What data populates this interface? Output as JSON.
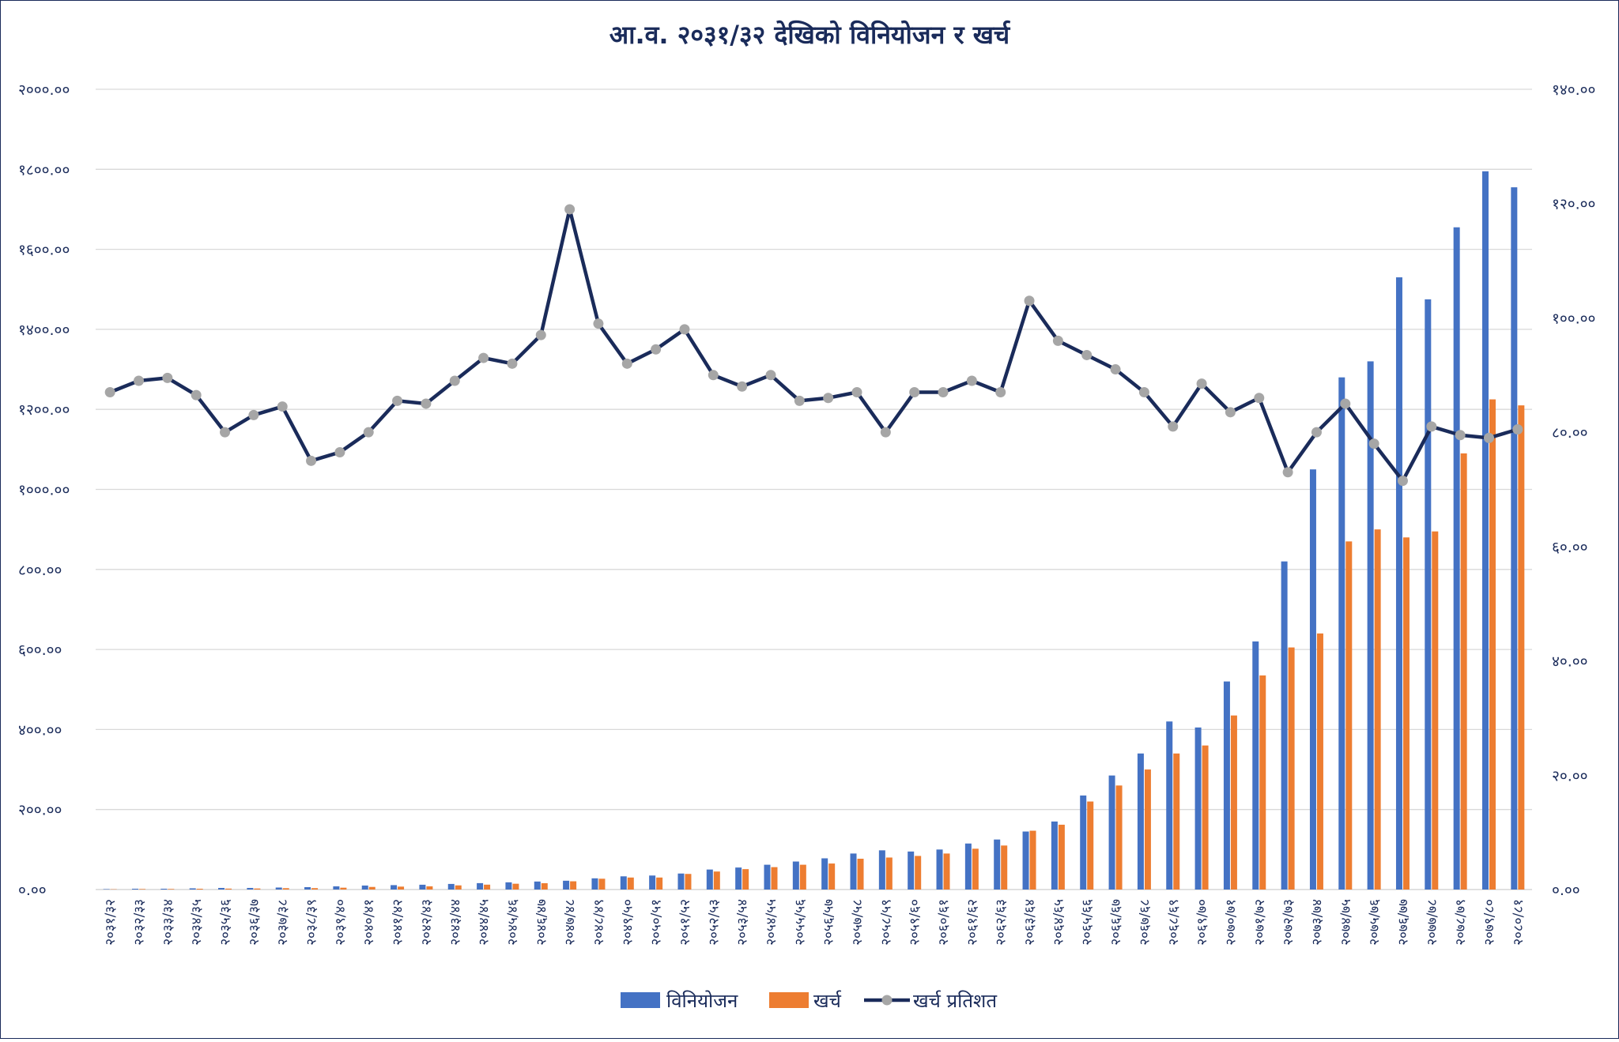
{
  "chart_data": {
    "type": "bar",
    "title": "आ.व. २०३१/३२ देखिको विनियोजन र खर्च",
    "categories": [
      "२०३१/३२",
      "२०३२/३३",
      "२०३३/३४",
      "२०३४/३५",
      "२०३५/३६",
      "२०३६/३७",
      "२०३७/३८",
      "२०३८/३९",
      "२०३९/४०",
      "२०४०/४१",
      "२०४१/४२",
      "२०४२/४३",
      "२०४३/४४",
      "२०४४/४५",
      "२०४५/४६",
      "२०४६/४७",
      "२०४७/४८",
      "२०४८/४९",
      "२०४९/५०",
      "२०५०/५१",
      "२०५१/५२",
      "२०५२/५३",
      "२०५३/५४",
      "२०५४/५५",
      "२०५५/५६",
      "२०५६/५७",
      "२०५७/५८",
      "२०५८/५९",
      "२०५९/६०",
      "२०६०/६१",
      "२०६१/६२",
      "२०६२/६३",
      "२०६३/६४",
      "२०६४/६५",
      "२०६५/६६",
      "२०६६/६७",
      "२०६७/६८",
      "२०६८/६९",
      "२०६९/७०",
      "२०७०/७१",
      "२०७१/७२",
      "२०७२/७३",
      "२०७३/७४",
      "२०७४/७५",
      "२०७५/७६",
      "२०७६/७७",
      "२०७७/७८",
      "२०७८/७९",
      "२०७९/८०",
      "२०८०/८१"
    ],
    "series": [
      {
        "name": "विनियोजन",
        "axis": "left",
        "type": "bar",
        "color": "#4472c4",
        "values": [
          1,
          2,
          2,
          3,
          4,
          4,
          5,
          6,
          8,
          10,
          11,
          12,
          14,
          16,
          18,
          20,
          22,
          28,
          33,
          35,
          40,
          50,
          55,
          62,
          70,
          78,
          90,
          98,
          95,
          100,
          115,
          125,
          145,
          170,
          235,
          285,
          340,
          420,
          405,
          520,
          620,
          820,
          1050,
          1280,
          1320,
          1530,
          1475,
          1655,
          1795,
          1755
        ]
      },
      {
        "name": "खर्च",
        "axis": "left",
        "type": "bar",
        "color": "#ed7d31",
        "values": [
          0.7,
          1.3,
          1.4,
          2,
          2.3,
          2.6,
          3.4,
          3.5,
          4.6,
          6.5,
          7.3,
          8,
          10.4,
          12.2,
          14.5,
          15.8,
          20.6,
          27,
          30,
          30,
          39,
          45,
          51,
          56,
          62,
          65,
          77,
          80,
          84,
          90,
          102,
          110,
          147,
          162,
          220,
          260,
          300,
          340,
          360,
          435,
          535,
          605,
          640,
          870,
          900,
          880,
          895,
          1090,
          1225,
          1210
        ]
      },
      {
        "name": "खर्च प्रतिशत",
        "axis": "right",
        "type": "line",
        "color": "#1a2b5a",
        "values": [
          87,
          89,
          89.5,
          86.5,
          80,
          83,
          84.5,
          75,
          76.5,
          80,
          85.5,
          85,
          89,
          93,
          92,
          97,
          119,
          99,
          92,
          94.5,
          98,
          90,
          88,
          90,
          85.5,
          86,
          87,
          80,
          87,
          87,
          89,
          87,
          103,
          96,
          93.5,
          91,
          87,
          81,
          88.5,
          83.5,
          86,
          73,
          80,
          85,
          78,
          71.5,
          81,
          79.5,
          79,
          80.5
        ]
      }
    ],
    "left_axis": {
      "ylim": [
        0,
        2000
      ],
      "ticks": [
        "०.००",
        "२००.००",
        "४००.००",
        "६००.००",
        "८००.००",
        "१०००.००",
        "१२००.००",
        "१४००.००",
        "१६००.००",
        "१८००.००",
        "२०००.००"
      ]
    },
    "right_axis": {
      "ylim": [
        0,
        140
      ],
      "ticks": [
        "०.००",
        "२०.००",
        "४०.००",
        "६०.००",
        "८०.००",
        "१००.००",
        "१२०.००",
        "१४०.००"
      ]
    },
    "grid": true,
    "legend_position": "bottom",
    "marker_color": "#a6a6a6"
  }
}
